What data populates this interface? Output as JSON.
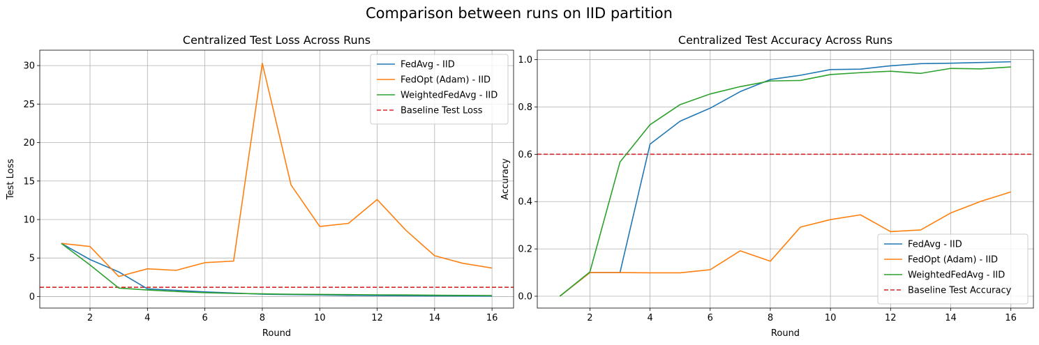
{
  "figure": {
    "suptitle": "Comparison between runs on IID partition"
  },
  "chart_data": [
    {
      "type": "line",
      "title": "Centralized Test Loss Across Runs",
      "xlabel": "Round",
      "ylabel": "Test Loss",
      "xlim": [
        0.25,
        16.75
      ],
      "ylim": [
        -1.5,
        32
      ],
      "xticks": [
        2,
        4,
        6,
        8,
        10,
        12,
        14,
        16
      ],
      "yticks": [
        0,
        5,
        10,
        15,
        20,
        25,
        30
      ],
      "grid": true,
      "legend_position": "top-right",
      "x": [
        1,
        2,
        3,
        4,
        5,
        6,
        7,
        8,
        9,
        10,
        11,
        12,
        13,
        14,
        15,
        16
      ],
      "series": [
        {
          "name": "FedAvg - IID",
          "color": "#1f77b4",
          "values": [
            6.9,
            4.8,
            3.2,
            1.0,
            0.8,
            0.6,
            0.45,
            0.3,
            0.25,
            0.2,
            0.15,
            0.12,
            0.1,
            0.08,
            0.07,
            0.06
          ]
        },
        {
          "name": "FedOpt (Adam) - IID",
          "color": "#ff7f0e",
          "values": [
            6.9,
            6.5,
            2.6,
            3.6,
            3.4,
            4.4,
            4.6,
            30.3,
            14.5,
            9.1,
            9.5,
            12.6,
            8.6,
            5.3,
            4.3,
            3.7
          ]
        },
        {
          "name": "WeightedFedAvg - IID",
          "color": "#2ca02c",
          "values": [
            6.9,
            4.1,
            1.1,
            0.85,
            0.65,
            0.5,
            0.4,
            0.35,
            0.3,
            0.27,
            0.25,
            0.22,
            0.2,
            0.17,
            0.15,
            0.13
          ]
        }
      ],
      "baseline": {
        "name": "Baseline Test Loss",
        "color": "#d62728",
        "value": 1.2
      }
    },
    {
      "type": "line",
      "title": "Centralized Test Accuracy Across Runs",
      "xlabel": "Round",
      "ylabel": "Accuracy",
      "xlim": [
        0.25,
        16.75
      ],
      "ylim": [
        -0.05,
        1.04
      ],
      "xticks": [
        2,
        4,
        6,
        8,
        10,
        12,
        14,
        16
      ],
      "yticks": [
        0.0,
        0.2,
        0.4,
        0.6,
        0.8,
        1.0
      ],
      "ytick_labels": [
        "0.0",
        "0.2",
        "0.4",
        "0.6",
        "0.8",
        "1.0"
      ],
      "grid": true,
      "legend_position": "bottom-right",
      "x": [
        1,
        2,
        3,
        4,
        5,
        6,
        7,
        8,
        9,
        10,
        11,
        12,
        13,
        14,
        15,
        16
      ],
      "series": [
        {
          "name": "FedAvg - IID",
          "color": "#1f77b4",
          "values": [
            0.0,
            0.1,
            0.1,
            0.643,
            0.74,
            0.795,
            0.865,
            0.916,
            0.934,
            0.958,
            0.96,
            0.974,
            0.983,
            0.985,
            0.988,
            0.991
          ]
        },
        {
          "name": "FedOpt (Adam) - IID",
          "color": "#ff7f0e",
          "values": [
            0.0,
            0.1,
            0.1,
            0.099,
            0.099,
            0.112,
            0.192,
            0.148,
            0.292,
            0.324,
            0.344,
            0.273,
            0.28,
            0.352,
            0.401,
            0.441
          ]
        },
        {
          "name": "WeightedFedAvg - IID",
          "color": "#2ca02c",
          "values": [
            0.0,
            0.103,
            0.567,
            0.725,
            0.81,
            0.855,
            0.886,
            0.91,
            0.912,
            0.937,
            0.945,
            0.951,
            0.942,
            0.963,
            0.961,
            0.969
          ]
        }
      ],
      "baseline": {
        "name": "Baseline Test Accuracy",
        "color": "#d62728",
        "value": 0.6
      }
    }
  ]
}
